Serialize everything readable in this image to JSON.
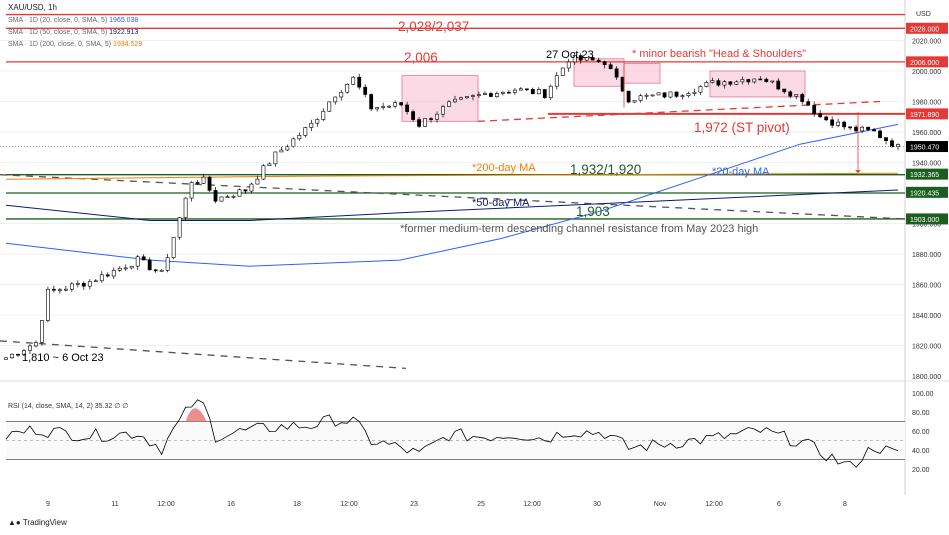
{
  "header": {
    "symbol": "XAU/USD, 1h",
    "indicators": [
      {
        "label": "SMA · 1D (20, close, 0, SMA, 5)",
        "value": "1965.038",
        "color": "#2962ff"
      },
      {
        "label": "SMA · 1D (50, close, 0, SMA, 5)",
        "value": "1922.913",
        "color": "#0d1a6e"
      },
      {
        "label": "SMA · 1D (200, close, 0, SMA, 5)",
        "value": "1934.529",
        "color": "#f57c00"
      }
    ]
  },
  "brand": "TradingView",
  "colors": {
    "resistance": "#e53935",
    "support": "#1b5e20",
    "ma20": "#2962ff",
    "ma50": "#0d1a6e",
    "ma200": "#f57c00",
    "hs_zone": "#f8bbd0",
    "rsi_line": "#000000",
    "text_red": "#e53935",
    "text_blue": "#2962ff",
    "text_navy": "#0d1a6e",
    "text_green": "#1b5e20",
    "text_gray": "#555555"
  },
  "chart_data": [
    {
      "type": "candlestick",
      "ylabel": "USD",
      "ylim": [
        1800,
        2040
      ],
      "y_ticks": [
        1820,
        1840,
        1860,
        1880,
        1900,
        1920,
        1940,
        1960,
        1980,
        2000,
        2020
      ],
      "x_ticks": [
        "9",
        "11",
        "12:00",
        "16",
        "18",
        "12:00",
        "23",
        "25",
        "12:00",
        "30",
        "Nov",
        "12:00",
        "6",
        "8"
      ],
      "price_anchors": [
        {
          "t": 0,
          "p": 1812
        },
        {
          "t": 5,
          "p": 1822
        },
        {
          "t": 7,
          "p": 1855
        },
        {
          "t": 14,
          "p": 1862
        },
        {
          "t": 22,
          "p": 1876
        },
        {
          "t": 26,
          "p": 1867
        },
        {
          "t": 31,
          "p": 1928
        },
        {
          "t": 33,
          "p": 1928
        },
        {
          "t": 35,
          "p": 1916
        },
        {
          "t": 40,
          "p": 1922
        },
        {
          "t": 45,
          "p": 1945
        },
        {
          "t": 51,
          "p": 1965
        },
        {
          "t": 55,
          "p": 1985
        },
        {
          "t": 58,
          "p": 1995
        },
        {
          "t": 61,
          "p": 1976
        },
        {
          "t": 66,
          "p": 1978
        },
        {
          "t": 69,
          "p": 1965
        },
        {
          "t": 74,
          "p": 1978
        },
        {
          "t": 80,
          "p": 1985
        },
        {
          "t": 85,
          "p": 1988
        },
        {
          "t": 90,
          "p": 1985
        },
        {
          "t": 94,
          "p": 2008
        },
        {
          "t": 100,
          "p": 2006
        },
        {
          "t": 104,
          "p": 1982
        },
        {
          "t": 112,
          "p": 1985
        },
        {
          "t": 118,
          "p": 1992
        },
        {
          "t": 126,
          "p": 1996
        },
        {
          "t": 133,
          "p": 1982
        },
        {
          "t": 136,
          "p": 1970
        },
        {
          "t": 141,
          "p": 1962
        },
        {
          "t": 145,
          "p": 1960
        },
        {
          "t": 149,
          "p": 1950
        }
      ],
      "last_price": 1950.47,
      "price_labels": [
        {
          "value": "2028.000",
          "price": 2028,
          "color": "#e53935"
        },
        {
          "value": "2006.000",
          "price": 2006,
          "color": "#e53935"
        },
        {
          "value": "1971.890",
          "price": 1971.89,
          "color": "#e53935"
        },
        {
          "value": "1950.470",
          "price": 1950.47,
          "color": "#000000"
        },
        {
          "value": "1932.365",
          "price": 1932.365,
          "color": "#1b5e20"
        },
        {
          "value": "1920.435",
          "price": 1920.435,
          "color": "#1b5e20"
        },
        {
          "value": "1903.000",
          "price": 1903,
          "color": "#1b5e20"
        }
      ],
      "levels": [
        {
          "name": "resistance-2037",
          "price": 2037,
          "color": "#e53935"
        },
        {
          "name": "resistance-2028",
          "price": 2028,
          "color": "#e53935"
        },
        {
          "name": "resistance-2006",
          "price": 2006,
          "color": "#e53935"
        },
        {
          "name": "support-1932",
          "price": 1932,
          "color": "#1b5e20"
        },
        {
          "name": "support-1920",
          "price": 1920,
          "color": "#1b5e20"
        },
        {
          "name": "support-1903",
          "price": 1903,
          "color": "#1b5e20"
        }
      ],
      "annotations": {
        "r1": "2,028/2,037",
        "r2": "2,006",
        "peak_date": "27 Oct 23",
        "pattern": "* minor bearish \"Head & Shoulders\"",
        "pivot": "1,972 (ST pivot)",
        "ma20": "*20-day MA",
        "ma200": "*200-day MA",
        "s1": "1,932/1,920",
        "ma50": "*50-day MA",
        "s2": "1,903",
        "channel": "*former medium-term descending channel resistance from May 2023 high",
        "low": "1,810 ~ 6 Oct 23"
      }
    },
    {
      "type": "line",
      "title": "RSI (14, close, SMA, 14, 2)",
      "title_values": "35.32 ∅ ∅",
      "ylim": [
        0,
        110
      ],
      "y_ticks": [
        20,
        40,
        60,
        80,
        100
      ],
      "levels": [
        30,
        50,
        70
      ],
      "rsi_anchors": [
        {
          "t": 0,
          "v": 55
        },
        {
          "t": 5,
          "v": 62
        },
        {
          "t": 7,
          "v": 60
        },
        {
          "t": 14,
          "v": 55
        },
        {
          "t": 22,
          "v": 58
        },
        {
          "t": 26,
          "v": 42
        },
        {
          "t": 31,
          "v": 88
        },
        {
          "t": 33,
          "v": 87
        },
        {
          "t": 35,
          "v": 55
        },
        {
          "t": 40,
          "v": 60
        },
        {
          "t": 45,
          "v": 64
        },
        {
          "t": 51,
          "v": 66
        },
        {
          "t": 55,
          "v": 72
        },
        {
          "t": 58,
          "v": 70
        },
        {
          "t": 61,
          "v": 50
        },
        {
          "t": 66,
          "v": 42
        },
        {
          "t": 69,
          "v": 35
        },
        {
          "t": 74,
          "v": 56
        },
        {
          "t": 80,
          "v": 54
        },
        {
          "t": 85,
          "v": 57
        },
        {
          "t": 90,
          "v": 52
        },
        {
          "t": 94,
          "v": 60
        },
        {
          "t": 100,
          "v": 58
        },
        {
          "t": 104,
          "v": 42
        },
        {
          "t": 112,
          "v": 48
        },
        {
          "t": 118,
          "v": 52
        },
        {
          "t": 126,
          "v": 60
        },
        {
          "t": 133,
          "v": 48
        },
        {
          "t": 136,
          "v": 38
        },
        {
          "t": 141,
          "v": 22
        },
        {
          "t": 145,
          "v": 44
        },
        {
          "t": 149,
          "v": 35
        }
      ]
    }
  ]
}
